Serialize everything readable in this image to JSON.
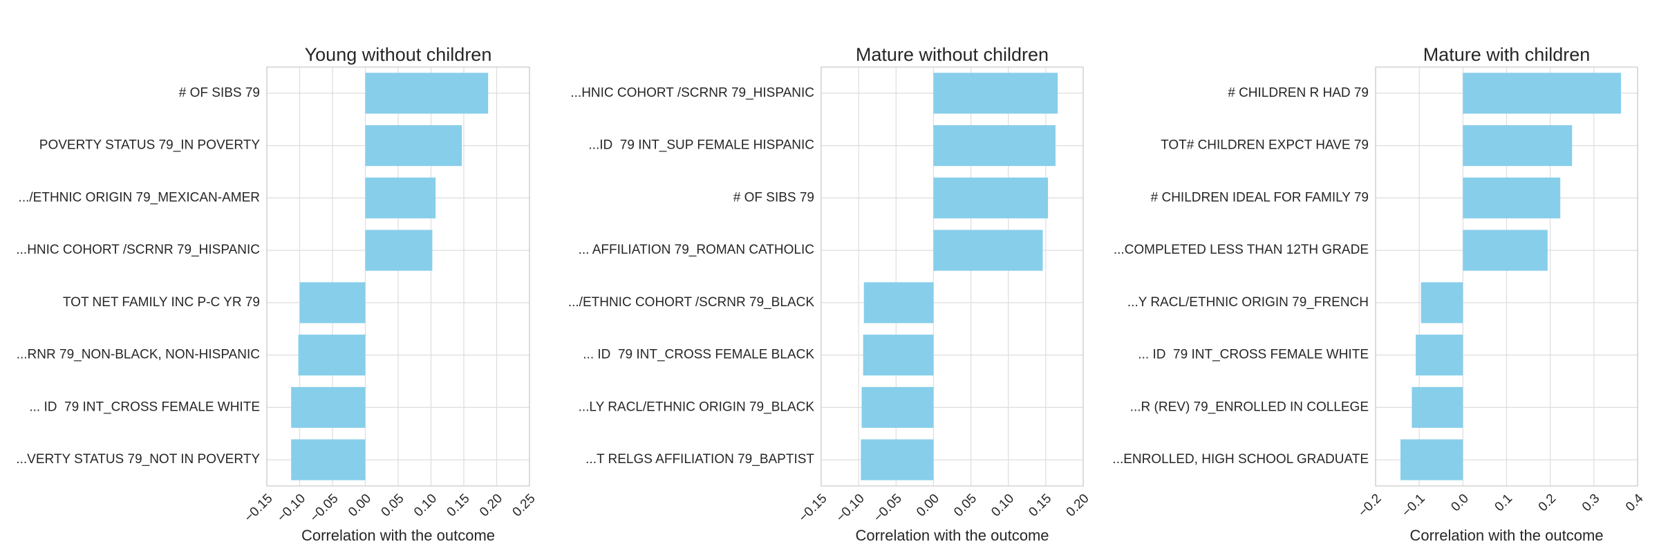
{
  "chart_data": [
    {
      "type": "bar",
      "orientation": "horizontal",
      "title": "Young without children",
      "xlabel": "Correlation with the outcome",
      "ylabel": "",
      "xlim": [
        -0.15,
        0.25
      ],
      "xticks": [
        "−0.15",
        "−0.10",
        "−0.05",
        "0.00",
        "0.05",
        "0.10",
        "0.15",
        "0.20",
        "0.25"
      ],
      "xtick_values": [
        -0.15,
        -0.1,
        -0.05,
        0.0,
        0.05,
        0.1,
        0.15,
        0.2,
        0.25
      ],
      "grid": true,
      "bar_color": "#87ceeb",
      "categories": [
        "# OF SIBS 79",
        "POVERTY STATUS 79_IN POVERTY",
        ".../ETHNIC ORIGIN 79_MEXICAN-AMER",
        "...HNIC COHORT /SCRNR 79_HISPANIC",
        "TOT NET FAMILY INC P-C YR 79",
        "...RNR 79_NON-BLACK, NON-HISPANIC",
        "... ID  79 INT_CROSS FEMALE WHITE",
        "...VERTY STATUS 79_NOT IN POVERTY"
      ],
      "values": [
        0.187,
        0.147,
        0.107,
        0.102,
        -0.1,
        -0.102,
        -0.113,
        -0.113
      ]
    },
    {
      "type": "bar",
      "orientation": "horizontal",
      "title": "Mature without children",
      "xlabel": "Correlation with the outcome",
      "ylabel": "",
      "xlim": [
        -0.15,
        0.2
      ],
      "xticks": [
        "−0.15",
        "−0.10",
        "−0.05",
        "0.00",
        "0.05",
        "0.10",
        "0.15",
        "0.20"
      ],
      "xtick_values": [
        -0.15,
        -0.1,
        -0.05,
        0.0,
        0.05,
        0.1,
        0.15,
        0.2
      ],
      "grid": true,
      "bar_color": "#87ceeb",
      "categories": [
        "...HNIC COHORT /SCRNR 79_HISPANIC",
        "...ID  79 INT_SUP FEMALE HISPANIC",
        "# OF SIBS 79",
        "... AFFILIATION 79_ROMAN CATHOLIC",
        ".../ETHNIC COHORT /SCRNR 79_BLACK",
        "... ID  79 INT_CROSS FEMALE BLACK",
        "...LY RACL/ETHNIC ORIGIN 79_BLACK",
        "...T RELGS AFFILIATION 79_BAPTIST"
      ],
      "values": [
        0.166,
        0.163,
        0.153,
        0.146,
        -0.093,
        -0.094,
        -0.096,
        -0.097
      ]
    },
    {
      "type": "bar",
      "orientation": "horizontal",
      "title": "Mature with children",
      "xlabel": "Correlation with the outcome",
      "ylabel": "",
      "xlim": [
        -0.2,
        0.4
      ],
      "xticks": [
        "−0.2",
        "−0.1",
        "0.0",
        "0.1",
        "0.2",
        "0.3",
        "0.4"
      ],
      "xtick_values": [
        -0.2,
        -0.1,
        0.0,
        0.1,
        0.2,
        0.3,
        0.4
      ],
      "grid": true,
      "bar_color": "#87ceeb",
      "categories": [
        "# CHILDREN R HAD 79",
        "TOT# CHILDREN EXPCT HAVE 79",
        "# CHILDREN IDEAL FOR FAMILY 79",
        "...COMPLETED LESS THAN 12TH GRADE",
        "...Y RACL/ETHNIC ORIGIN 79_FRENCH",
        "... ID  79 INT_CROSS FEMALE WHITE",
        "...R (REV) 79_ENROLLED IN COLLEGE",
        "...ENROLLED, HIGH SCHOOL GRADUATE"
      ],
      "values": [
        0.362,
        0.25,
        0.223,
        0.194,
        -0.096,
        -0.108,
        -0.117,
        -0.143
      ]
    }
  ]
}
